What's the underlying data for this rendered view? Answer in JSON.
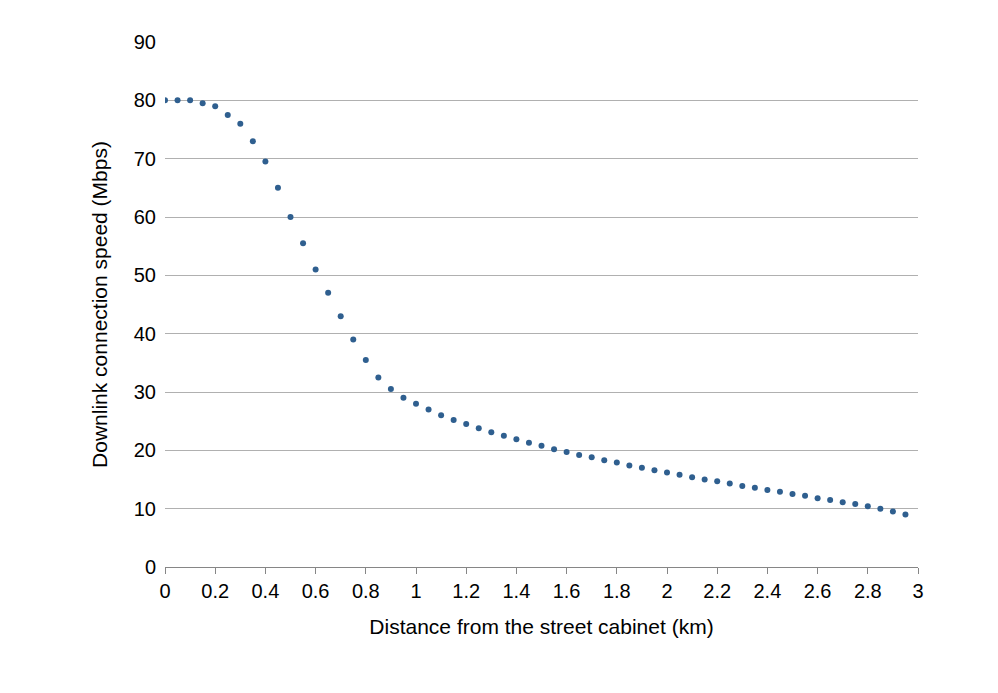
{
  "chart_data": {
    "type": "scatter",
    "x_label": "Distance from the street cabinet (km)",
    "y_label": "Downlink connection speed (Mbps)",
    "x": [
      0,
      0.05,
      0.1,
      0.15,
      0.2,
      0.25,
      0.3,
      0.35,
      0.4,
      0.45,
      0.5,
      0.55,
      0.6,
      0.65,
      0.7,
      0.75,
      0.8,
      0.85,
      0.9,
      0.95,
      1.0,
      1.05,
      1.1,
      1.15,
      1.2,
      1.25,
      1.3,
      1.35,
      1.4,
      1.45,
      1.5,
      1.55,
      1.6,
      1.65,
      1.7,
      1.75,
      1.8,
      1.85,
      1.9,
      1.95,
      2.0,
      2.05,
      2.1,
      2.15,
      2.2,
      2.25,
      2.3,
      2.35,
      2.4,
      2.45,
      2.5,
      2.55,
      2.6,
      2.65,
      2.7,
      2.75,
      2.8,
      2.85,
      2.9,
      2.95
    ],
    "values": [
      80,
      80,
      80,
      79.5,
      79,
      77.5,
      76,
      73,
      69.5,
      65,
      60,
      55.5,
      51,
      47,
      43,
      39,
      35.5,
      32.5,
      30.5,
      29,
      28,
      27,
      26,
      25.2,
      24.5,
      23.8,
      23.1,
      22.5,
      21.9,
      21.3,
      20.8,
      20.2,
      19.7,
      19.2,
      18.8,
      18.3,
      17.9,
      17.4,
      17,
      16.6,
      16.2,
      15.8,
      15.4,
      15,
      14.7,
      14.3,
      13.9,
      13.6,
      13.2,
      12.9,
      12.5,
      12.2,
      11.8,
      11.5,
      11.1,
      10.8,
      10.4,
      10,
      9.5,
      9
    ],
    "color": "#2f5f8f",
    "marker": "circle",
    "xlim": [
      0,
      3
    ],
    "xticks": [
      0,
      0.2,
      0.4,
      0.6,
      0.8,
      1,
      1.2,
      1.4,
      1.6,
      1.8,
      2,
      2.2,
      2.4,
      2.6,
      2.8,
      3
    ],
    "ylim": [
      0,
      90
    ],
    "yticks": [
      0,
      10,
      20,
      30,
      40,
      50,
      60,
      70,
      80,
      90
    ],
    "grid": true
  }
}
